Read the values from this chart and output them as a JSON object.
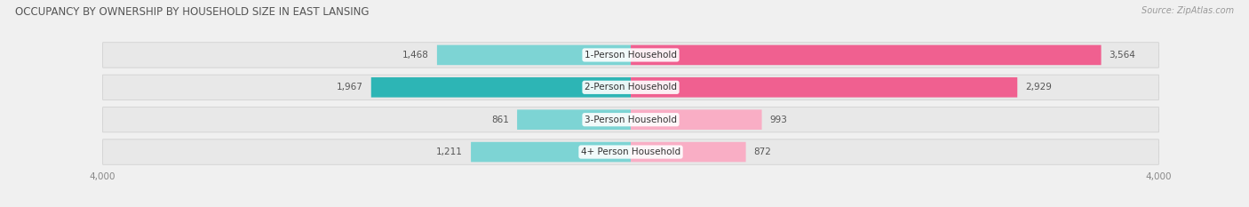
{
  "title": "OCCUPANCY BY OWNERSHIP BY HOUSEHOLD SIZE IN EAST LANSING",
  "source": "Source: ZipAtlas.com",
  "categories": [
    "1-Person Household",
    "2-Person Household",
    "3-Person Household",
    "4+ Person Household"
  ],
  "owner_values": [
    1468,
    1967,
    861,
    1211
  ],
  "renter_values": [
    3564,
    2929,
    993,
    872
  ],
  "max_val": 4000,
  "owner_color_strong": "#2db5b5",
  "owner_color_light": "#7dd4d4",
  "renter_color_strong": "#f06090",
  "renter_color_light": "#f9aec5",
  "bg_color": "#f0f0f0",
  "row_bg_color": "#e8e8e8",
  "title_fontsize": 8.5,
  "label_fontsize": 7.5,
  "axis_tick_fontsize": 7.5,
  "legend_fontsize": 7.5,
  "source_fontsize": 7,
  "strong_threshold": 1500
}
